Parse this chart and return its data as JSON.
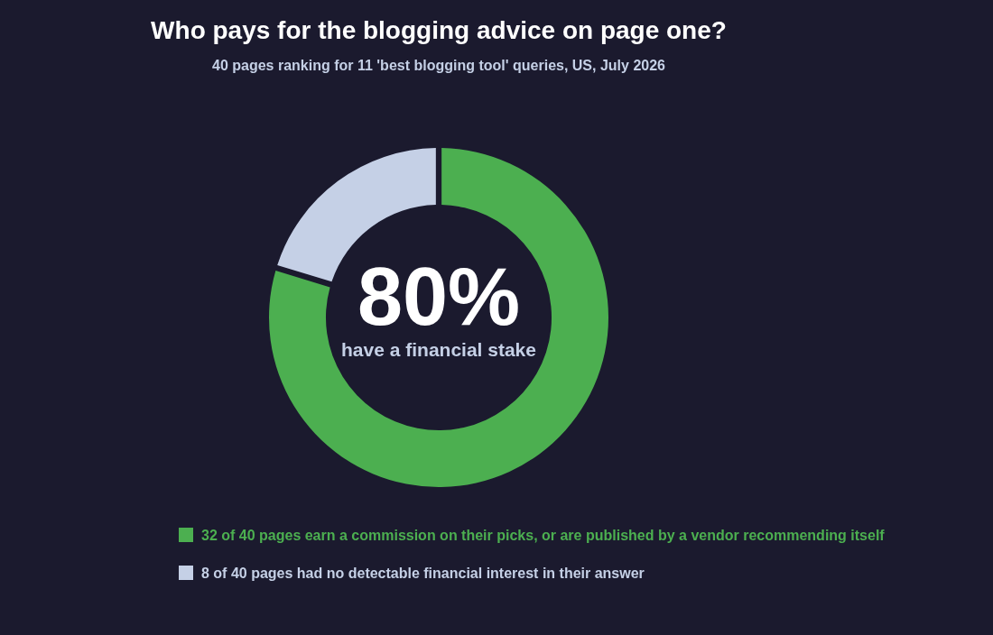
{
  "chart_data": {
    "type": "donut",
    "title": "Who pays for the blogging advice on page one?",
    "subtitle": "40 pages ranking for 11 'best blogging tool' queries, US, July 2026",
    "categories": [
      "32 of 40 pages earn a commission on their picks, or are published by a vendor recommending itself",
      "8 of 40 pages had no detectable financial interest in their answer"
    ],
    "values": [
      32,
      8
    ],
    "colors": [
      "#4caf50",
      "#c5d0e6"
    ],
    "annotations": [
      "80%",
      "have a financial stake"
    ],
    "legend": "bottom"
  }
}
